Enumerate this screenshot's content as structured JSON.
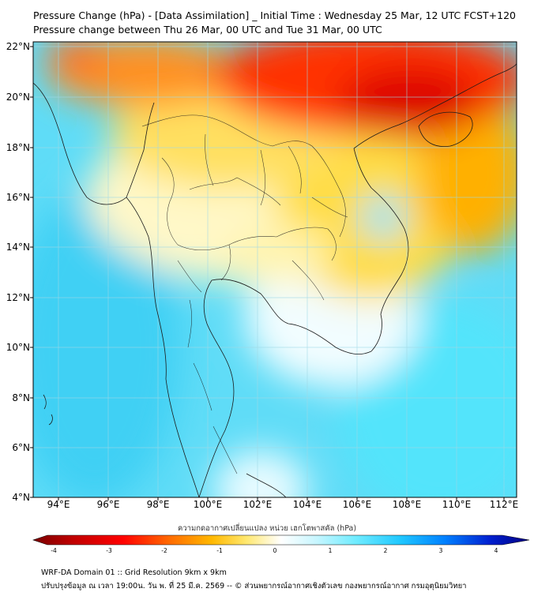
{
  "title_line1": "Pressure Change (hPa) - [Data Assimilation] _ Initial Time : Wednesday 25 Mar, 12 UTC FCST+120",
  "title_line2": "Pressure change between Thu 26 Mar, 00 UTC and Tue 31 Mar, 00 UTC",
  "lat_labels": [
    "22°N",
    "20°N",
    "18°N",
    "16°N",
    "14°N",
    "12°N",
    "10°N",
    "8°N",
    "6°N",
    "4°N"
  ],
  "lon_labels": [
    "94°E",
    "96°E",
    "98°E",
    "100°E",
    "102°E",
    "104°E",
    "106°E",
    "108°E",
    "110°E",
    "112°E"
  ],
  "colorbar": {
    "title": "ความกดอากาศเปลี่ยนแปลง หน่วย เฮกโตพาสคัล (hPa)",
    "ticks": [
      "-4",
      "-3",
      "-2",
      "-1",
      "0",
      "1",
      "2",
      "3",
      "4"
    ],
    "min": -4,
    "max": 4,
    "colors": [
      "#7a0000",
      "#c00000",
      "#ff0000",
      "#ff6a00",
      "#ffb000",
      "#ffe040",
      "#fff8c0",
      "#ffffff",
      "#c8f6ff",
      "#70ecff",
      "#20d0ff",
      "#0090ff",
      "#0030e0",
      "#000090"
    ]
  },
  "footer_line1": "WRF-DA Domain 01 :: Grid Resolution 9km x 9km",
  "footer_line2": "ปรับปรุงข้อมูล ณ เวลา 19:00น. วัน พ. ที่ 25 มี.ค. 2569 -- © ส่วนพยากรณ์อากาศเชิงตัวเลข กองพยากรณ์อากาศ กรมอุตุนิยมวิทยา"
}
